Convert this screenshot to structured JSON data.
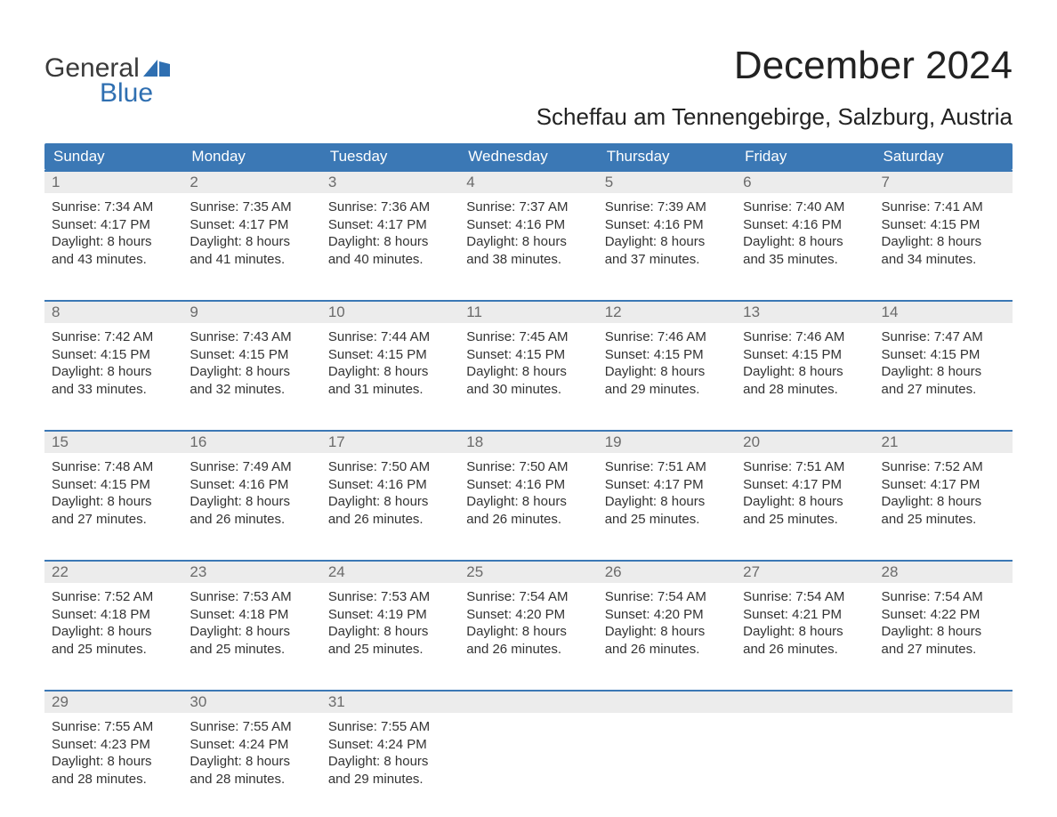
{
  "logo": {
    "top": "General",
    "bottom": "Blue"
  },
  "title": "December 2024",
  "location": "Scheffau am Tennengebirge, Salzburg, Austria",
  "colors": {
    "brand_blue": "#2f6fb1",
    "header_blue": "#3b78b5",
    "rule_blue": "#3b78b5",
    "daynum_bg": "#ececec",
    "daynum_text": "#6b6b6b",
    "body_text": "#333333",
    "page_bg": "#ffffff"
  },
  "typography": {
    "title_fontsize": 44,
    "location_fontsize": 26,
    "weekday_fontsize": 17,
    "daynum_fontsize": 17,
    "body_fontsize": 15,
    "logo_fontsize": 30
  },
  "weekdays": [
    "Sunday",
    "Monday",
    "Tuesday",
    "Wednesday",
    "Thursday",
    "Friday",
    "Saturday"
  ],
  "weeks": [
    [
      {
        "n": "1",
        "l": [
          "Sunrise: 7:34 AM",
          "Sunset: 4:17 PM",
          "Daylight: 8 hours",
          "and 43 minutes."
        ]
      },
      {
        "n": "2",
        "l": [
          "Sunrise: 7:35 AM",
          "Sunset: 4:17 PM",
          "Daylight: 8 hours",
          "and 41 minutes."
        ]
      },
      {
        "n": "3",
        "l": [
          "Sunrise: 7:36 AM",
          "Sunset: 4:17 PM",
          "Daylight: 8 hours",
          "and 40 minutes."
        ]
      },
      {
        "n": "4",
        "l": [
          "Sunrise: 7:37 AM",
          "Sunset: 4:16 PM",
          "Daylight: 8 hours",
          "and 38 minutes."
        ]
      },
      {
        "n": "5",
        "l": [
          "Sunrise: 7:39 AM",
          "Sunset: 4:16 PM",
          "Daylight: 8 hours",
          "and 37 minutes."
        ]
      },
      {
        "n": "6",
        "l": [
          "Sunrise: 7:40 AM",
          "Sunset: 4:16 PM",
          "Daylight: 8 hours",
          "and 35 minutes."
        ]
      },
      {
        "n": "7",
        "l": [
          "Sunrise: 7:41 AM",
          "Sunset: 4:15 PM",
          "Daylight: 8 hours",
          "and 34 minutes."
        ]
      }
    ],
    [
      {
        "n": "8",
        "l": [
          "Sunrise: 7:42 AM",
          "Sunset: 4:15 PM",
          "Daylight: 8 hours",
          "and 33 minutes."
        ]
      },
      {
        "n": "9",
        "l": [
          "Sunrise: 7:43 AM",
          "Sunset: 4:15 PM",
          "Daylight: 8 hours",
          "and 32 minutes."
        ]
      },
      {
        "n": "10",
        "l": [
          "Sunrise: 7:44 AM",
          "Sunset: 4:15 PM",
          "Daylight: 8 hours",
          "and 31 minutes."
        ]
      },
      {
        "n": "11",
        "l": [
          "Sunrise: 7:45 AM",
          "Sunset: 4:15 PM",
          "Daylight: 8 hours",
          "and 30 minutes."
        ]
      },
      {
        "n": "12",
        "l": [
          "Sunrise: 7:46 AM",
          "Sunset: 4:15 PM",
          "Daylight: 8 hours",
          "and 29 minutes."
        ]
      },
      {
        "n": "13",
        "l": [
          "Sunrise: 7:46 AM",
          "Sunset: 4:15 PM",
          "Daylight: 8 hours",
          "and 28 minutes."
        ]
      },
      {
        "n": "14",
        "l": [
          "Sunrise: 7:47 AM",
          "Sunset: 4:15 PM",
          "Daylight: 8 hours",
          "and 27 minutes."
        ]
      }
    ],
    [
      {
        "n": "15",
        "l": [
          "Sunrise: 7:48 AM",
          "Sunset: 4:15 PM",
          "Daylight: 8 hours",
          "and 27 minutes."
        ]
      },
      {
        "n": "16",
        "l": [
          "Sunrise: 7:49 AM",
          "Sunset: 4:16 PM",
          "Daylight: 8 hours",
          "and 26 minutes."
        ]
      },
      {
        "n": "17",
        "l": [
          "Sunrise: 7:50 AM",
          "Sunset: 4:16 PM",
          "Daylight: 8 hours",
          "and 26 minutes."
        ]
      },
      {
        "n": "18",
        "l": [
          "Sunrise: 7:50 AM",
          "Sunset: 4:16 PM",
          "Daylight: 8 hours",
          "and 26 minutes."
        ]
      },
      {
        "n": "19",
        "l": [
          "Sunrise: 7:51 AM",
          "Sunset: 4:17 PM",
          "Daylight: 8 hours",
          "and 25 minutes."
        ]
      },
      {
        "n": "20",
        "l": [
          "Sunrise: 7:51 AM",
          "Sunset: 4:17 PM",
          "Daylight: 8 hours",
          "and 25 minutes."
        ]
      },
      {
        "n": "21",
        "l": [
          "Sunrise: 7:52 AM",
          "Sunset: 4:17 PM",
          "Daylight: 8 hours",
          "and 25 minutes."
        ]
      }
    ],
    [
      {
        "n": "22",
        "l": [
          "Sunrise: 7:52 AM",
          "Sunset: 4:18 PM",
          "Daylight: 8 hours",
          "and 25 minutes."
        ]
      },
      {
        "n": "23",
        "l": [
          "Sunrise: 7:53 AM",
          "Sunset: 4:18 PM",
          "Daylight: 8 hours",
          "and 25 minutes."
        ]
      },
      {
        "n": "24",
        "l": [
          "Sunrise: 7:53 AM",
          "Sunset: 4:19 PM",
          "Daylight: 8 hours",
          "and 25 minutes."
        ]
      },
      {
        "n": "25",
        "l": [
          "Sunrise: 7:54 AM",
          "Sunset: 4:20 PM",
          "Daylight: 8 hours",
          "and 26 minutes."
        ]
      },
      {
        "n": "26",
        "l": [
          "Sunrise: 7:54 AM",
          "Sunset: 4:20 PM",
          "Daylight: 8 hours",
          "and 26 minutes."
        ]
      },
      {
        "n": "27",
        "l": [
          "Sunrise: 7:54 AM",
          "Sunset: 4:21 PM",
          "Daylight: 8 hours",
          "and 26 minutes."
        ]
      },
      {
        "n": "28",
        "l": [
          "Sunrise: 7:54 AM",
          "Sunset: 4:22 PM",
          "Daylight: 8 hours",
          "and 27 minutes."
        ]
      }
    ],
    [
      {
        "n": "29",
        "l": [
          "Sunrise: 7:55 AM",
          "Sunset: 4:23 PM",
          "Daylight: 8 hours",
          "and 28 minutes."
        ]
      },
      {
        "n": "30",
        "l": [
          "Sunrise: 7:55 AM",
          "Sunset: 4:24 PM",
          "Daylight: 8 hours",
          "and 28 minutes."
        ]
      },
      {
        "n": "31",
        "l": [
          "Sunrise: 7:55 AM",
          "Sunset: 4:24 PM",
          "Daylight: 8 hours",
          "and 29 minutes."
        ]
      },
      {
        "n": "",
        "l": []
      },
      {
        "n": "",
        "l": []
      },
      {
        "n": "",
        "l": []
      },
      {
        "n": "",
        "l": []
      }
    ]
  ]
}
